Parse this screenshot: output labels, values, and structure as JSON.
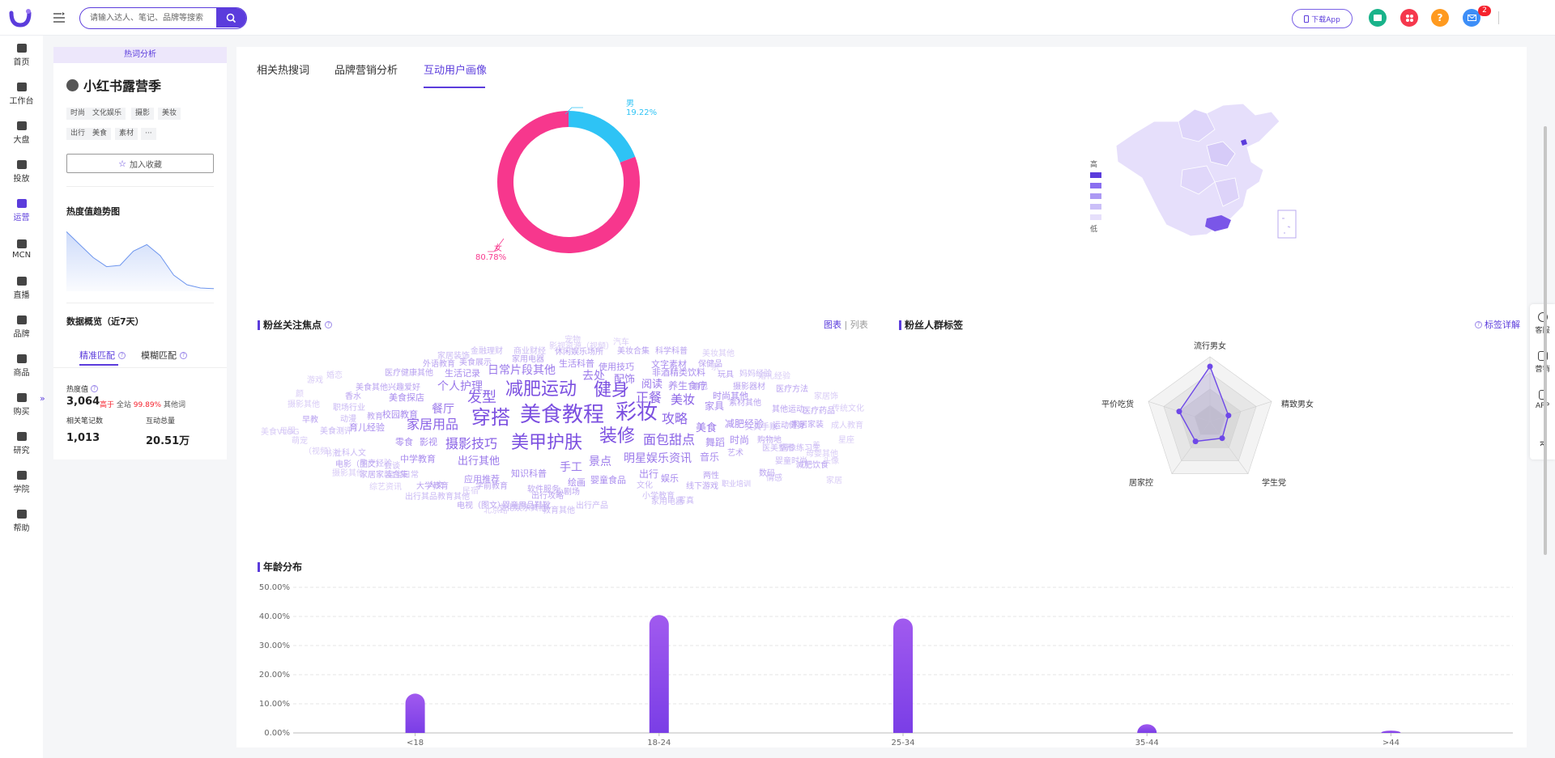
{
  "header": {
    "search_placeholder": "请输入达人、笔记、品牌等搜索",
    "download_label": "下载App",
    "notification_count": "2"
  },
  "sidebar": {
    "items": [
      {
        "label": "首页",
        "icon": "home-icon"
      },
      {
        "label": "工作台",
        "icon": "workbench-icon"
      },
      {
        "label": "大盘",
        "icon": "pie-chart-icon"
      },
      {
        "label": "投放",
        "icon": "folder-icon"
      },
      {
        "label": "运营",
        "icon": "trend-icon",
        "active": true
      },
      {
        "label": "MCN",
        "icon": "mcn-icon"
      },
      {
        "label": "直播",
        "icon": "video-icon"
      },
      {
        "label": "品牌",
        "icon": "brand-icon"
      },
      {
        "label": "商品",
        "icon": "bag-icon"
      },
      {
        "label": "购买",
        "icon": "cart-icon"
      },
      {
        "label": "研究",
        "icon": "flask-icon"
      },
      {
        "label": "学院",
        "icon": "academy-icon"
      },
      {
        "label": "帮助",
        "icon": "help-icon"
      }
    ]
  },
  "left_panel": {
    "header": "热词分析",
    "topic_title": "小红书露营季",
    "tags": [
      "时尚",
      "文化娱乐",
      "摄影",
      "美妆",
      "出行",
      "美食",
      "素材",
      "···"
    ],
    "favorite_label": "加入收藏",
    "trend_title": "热度值趋势图",
    "trend_points": [
      0.92,
      0.72,
      0.52,
      0.38,
      0.4,
      0.62,
      0.72,
      0.55,
      0.25,
      0.1,
      0.05,
      0.04
    ],
    "overview_title": "数据概览（近7天）",
    "tabs": [
      "精准匹配",
      "模糊匹配"
    ],
    "stats": {
      "heat_label": "热度值",
      "heat_value": "3,064",
      "heat_extra_prefix": "高于",
      "heat_extra_mid": "全站",
      "heat_extra_pct": "99.89%",
      "heat_extra_suffix": "其他词",
      "notes_label": "相关笔记数",
      "notes_value": "1,013",
      "interact_label": "互动总量",
      "interact_value": "20.51万"
    }
  },
  "main": {
    "tabs": [
      "相关热搜词",
      "品牌营销分析",
      "互动用户画像"
    ],
    "gender": {
      "male_label": "男",
      "male_pct": "19.22%",
      "male_value": 19.22,
      "female_label": "女",
      "female_pct": "80.78%",
      "female_value": 80.78,
      "male_color": "#2ec3f5",
      "female_color": "#f7378d"
    },
    "map_legend": {
      "high": "高",
      "low": "低"
    },
    "focus_title": "粉丝关注焦点",
    "view_chart": "图表",
    "view_list": "列表",
    "crowd_title": "粉丝人群标签",
    "tag_detail": "标签详解",
    "radar": {
      "labels": [
        "流行男女",
        "精致男女",
        "学生党",
        "居家控",
        "平价吃货"
      ],
      "values": [
        0.85,
        0.3,
        0.32,
        0.38,
        0.5
      ]
    },
    "age_title": "年龄分布",
    "word_cloud": [
      {
        "t": "美食教程",
        "s": 26,
        "c": "#7b4fe0"
      },
      {
        "t": "减肥运动",
        "s": 22,
        "c": "#7b4fe0"
      },
      {
        "t": "彩妆",
        "s": 26,
        "c": "#7b4fe0"
      },
      {
        "t": "穿搭",
        "s": 24,
        "c": "#7b4fe0"
      },
      {
        "t": "美甲护肤",
        "s": 22,
        "c": "#7b4fe0"
      },
      {
        "t": "装修",
        "s": 22,
        "c": "#7b4fe0"
      },
      {
        "t": "健身",
        "s": 22,
        "c": "#7b4fe0"
      },
      {
        "t": "发型",
        "s": 18,
        "c": "#8a62e6"
      },
      {
        "t": "正餐",
        "s": 16,
        "c": "#8a62e6"
      },
      {
        "t": "美妆",
        "s": 15,
        "c": "#8a62e6"
      },
      {
        "t": "家居用品",
        "s": 16,
        "c": "#8a62e6"
      },
      {
        "t": "摄影技巧",
        "s": 16,
        "c": "#8a62e6"
      },
      {
        "t": "面包甜点",
        "s": 16,
        "c": "#8a62e6"
      },
      {
        "t": "攻略",
        "s": 16,
        "c": "#8a62e6"
      },
      {
        "t": "明星娱乐资讯",
        "s": 14,
        "c": "#9a78ea"
      },
      {
        "t": "日常片段其他",
        "s": 14,
        "c": "#9a78ea"
      },
      {
        "t": "个人护理",
        "s": 14,
        "c": "#9a78ea"
      },
      {
        "t": "餐厅",
        "s": 14,
        "c": "#9a78ea"
      },
      {
        "t": "去处",
        "s": 14,
        "c": "#9a78ea"
      },
      {
        "t": "配饰",
        "s": 13,
        "c": "#9a78ea"
      },
      {
        "t": "阅读",
        "s": 13,
        "c": "#9a78ea"
      },
      {
        "t": "养生食疗",
        "s": 12,
        "c": "#a88bee"
      },
      {
        "t": "景点",
        "s": 14,
        "c": "#9a78ea"
      },
      {
        "t": "手工",
        "s": 14,
        "c": "#9a78ea"
      },
      {
        "t": "出行其他",
        "s": 13,
        "c": "#9a78ea"
      },
      {
        "t": "美食",
        "s": 13,
        "c": "#9a78ea"
      },
      {
        "t": "家具",
        "s": 12,
        "c": "#a88bee"
      },
      {
        "t": "减肥经验",
        "s": 12,
        "c": "#a88bee"
      },
      {
        "t": "舞蹈",
        "s": 12,
        "c": "#a88bee"
      },
      {
        "t": "时尚",
        "s": 12,
        "c": "#a88bee"
      },
      {
        "t": "音乐",
        "s": 12,
        "c": "#a88bee"
      },
      {
        "t": "出行",
        "s": 12,
        "c": "#a88bee"
      },
      {
        "t": "娱乐",
        "s": 11,
        "c": "#a88bee"
      },
      {
        "t": "婴童食品",
        "s": 11,
        "c": "#a88bee"
      },
      {
        "t": "绘画",
        "s": 11,
        "c": "#a88bee"
      },
      {
        "t": "应用推荐",
        "s": 11,
        "c": "#a88bee"
      },
      {
        "t": "知识科普",
        "s": 11,
        "c": "#a88bee"
      },
      {
        "t": "中学教育",
        "s": 11,
        "c": "#a88bee"
      },
      {
        "t": "影视",
        "s": 11,
        "c": "#a88bee"
      },
      {
        "t": "零食",
        "s": 11,
        "c": "#a88bee"
      },
      {
        "t": "育儿经验",
        "s": 11,
        "c": "#a88bee"
      },
      {
        "t": "校园教育",
        "s": 11,
        "c": "#a88bee"
      },
      {
        "t": "美食探店",
        "s": 11,
        "c": "#a88bee"
      },
      {
        "t": "生活记录",
        "s": 11,
        "c": "#a88bee"
      },
      {
        "t": "使用技巧",
        "s": 11,
        "c": "#a88bee"
      },
      {
        "t": "非酒精类饮料",
        "s": 11,
        "c": "#a88bee"
      },
      {
        "t": "文字素材",
        "s": 11,
        "c": "#a88bee"
      },
      {
        "t": "时尚其他",
        "s": 11,
        "c": "#a88bee"
      },
      {
        "t": "生活科普",
        "s": 11,
        "c": "#a88bee"
      },
      {
        "t": "医疗健康其他",
        "s": 10,
        "c": "#b9a2f0"
      },
      {
        "t": "美食其他兴趣爱好",
        "s": 10,
        "c": "#b9a2f0"
      },
      {
        "t": "美食展示",
        "s": 10,
        "c": "#b9a2f0"
      },
      {
        "t": "外语教育",
        "s": 10,
        "c": "#b9a2f0"
      },
      {
        "t": "家用电器",
        "s": 10,
        "c": "#b9a2f0"
      },
      {
        "t": "休闲娱乐场所",
        "s": 10,
        "c": "#b9a2f0"
      },
      {
        "t": "美妆合集",
        "s": 10,
        "c": "#b9a2f0"
      },
      {
        "t": "科学科普",
        "s": 10,
        "c": "#b9a2f0"
      },
      {
        "t": "保健品",
        "s": 10,
        "c": "#b9a2f0"
      },
      {
        "t": "玩具",
        "s": 10,
        "c": "#b9a2f0"
      },
      {
        "t": "箱包",
        "s": 10,
        "c": "#b9a2f0"
      },
      {
        "t": "摄影器材",
        "s": 10,
        "c": "#b9a2f0"
      },
      {
        "t": "医疗方法",
        "s": 10,
        "c": "#b9a2f0"
      },
      {
        "t": "素材其他",
        "s": 10,
        "c": "#b9a2f0"
      },
      {
        "t": "其他运动",
        "s": 10,
        "c": "#b9a2f0"
      },
      {
        "t": "医疗药品",
        "s": 10,
        "c": "#b9a2f0"
      },
      {
        "t": "购物地",
        "s": 10,
        "c": "#b9a2f0"
      },
      {
        "t": "艺术",
        "s": 10,
        "c": "#b9a2f0"
      },
      {
        "t": "文具手账",
        "s": 10,
        "c": "#c9b8f4"
      },
      {
        "t": "运动健身",
        "s": 10,
        "c": "#b9a2f0"
      },
      {
        "t": "家居家装",
        "s": 10,
        "c": "#b9a2f0"
      },
      {
        "t": "减肥饮食",
        "s": 10,
        "c": "#b9a2f0"
      },
      {
        "t": "数码",
        "s": 10,
        "c": "#b9a2f0"
      },
      {
        "t": "两性",
        "s": 10,
        "c": "#b9a2f0"
      },
      {
        "t": "宝宝日常",
        "s": 10,
        "c": "#c9b8f4"
      },
      {
        "t": "人文",
        "s": 10,
        "c": "#b9a2f0"
      },
      {
        "t": "大学教育",
        "s": 10,
        "c": "#b9a2f0"
      },
      {
        "t": "学前教育",
        "s": 10,
        "c": "#b9a2f0"
      },
      {
        "t": "软件服务",
        "s": 10,
        "c": "#b9a2f0"
      },
      {
        "t": "出行攻略",
        "s": 10,
        "c": "#b9a2f0"
      },
      {
        "t": "小剧场",
        "s": 10,
        "c": "#b9a2f0"
      },
      {
        "t": "文化",
        "s": 10,
        "c": "#c9b8f4"
      },
      {
        "t": "线下游戏",
        "s": 10,
        "c": "#b9a2f0"
      },
      {
        "t": "职业培训",
        "s": 9,
        "c": "#c9b8f4"
      },
      {
        "t": "出行产品",
        "s": 10,
        "c": "#c9b8f4"
      },
      {
        "t": "教育其他",
        "s": 10,
        "c": "#c9b8f4"
      },
      {
        "t": "电视（图文）",
        "s": 10,
        "c": "#b9a2f0"
      },
      {
        "t": "婴童用品鞋靴",
        "s": 10,
        "c": "#b9a2f0"
      },
      {
        "t": "家居家装合集",
        "s": 10,
        "c": "#b9a2f0"
      },
      {
        "t": "社科人文",
        "s": 10,
        "c": "#c9b8f4"
      },
      {
        "t": "电影（图文）",
        "s": 10,
        "c": "#b9a2f0"
      },
      {
        "t": "美食测评",
        "s": 10,
        "c": "#c9b8f4"
      },
      {
        "t": "职场行业",
        "s": 10,
        "c": "#c9b8f4"
      },
      {
        "t": "香水",
        "s": 10,
        "c": "#b9a2f0"
      },
      {
        "t": "早教",
        "s": 10,
        "c": "#b9a2f0"
      },
      {
        "t": "动漫",
        "s": 10,
        "c": "#c9b8f4"
      },
      {
        "t": "教育",
        "s": 10,
        "c": "#b9a2f0"
      },
      {
        "t": "孕产经验",
        "s": 10,
        "c": "#c9b8f4"
      },
      {
        "t": "会谈",
        "s": 10,
        "c": "#c9b8f4"
      },
      {
        "t": "医美整形",
        "s": 10,
        "c": "#c9b8f4"
      },
      {
        "t": "偶像练习生",
        "s": 10,
        "c": "#c9b8f4"
      },
      {
        "t": "婴童时尚",
        "s": 10,
        "c": "#c9b8f4"
      },
      {
        "t": "情感",
        "s": 10,
        "c": "#c9b8f4"
      },
      {
        "t": "写真",
        "s": 10,
        "c": "#c9b8f4"
      },
      {
        "t": "小学教育",
        "s": 10,
        "c": "#c9b8f4"
      },
      {
        "t": "家用电器",
        "s": 10,
        "c": "#c9b8f4"
      },
      {
        "t": "妈妈经验",
        "s": 10,
        "c": "#c9b8f4"
      },
      {
        "t": "家居装饰",
        "s": 10,
        "c": "#c9b8f4"
      },
      {
        "t": "金融理财",
        "s": 10,
        "c": "#c9b8f4"
      },
      {
        "t": "商业财经",
        "s": 10,
        "c": "#c9b8f4"
      },
      {
        "t": "影视资源（视频）",
        "s": 10,
        "c": "#d8cbf6"
      },
      {
        "t": "宠物",
        "s": 10,
        "c": "#d8cbf6"
      },
      {
        "t": "汽车",
        "s": 10,
        "c": "#d8cbf6"
      },
      {
        "t": "美妆其他",
        "s": 10,
        "c": "#d8cbf6"
      },
      {
        "t": "婚恋",
        "s": 10,
        "c": "#d8cbf6"
      },
      {
        "t": "游戏",
        "s": 10,
        "c": "#d8cbf6"
      },
      {
        "t": "婚礼经验",
        "s": 10,
        "c": "#d8cbf6"
      },
      {
        "t": "家居饰",
        "s": 10,
        "c": "#d8cbf6"
      },
      {
        "t": "传统文化",
        "s": 10,
        "c": "#d8cbf6"
      },
      {
        "t": "成人教育",
        "s": 10,
        "c": "#d8cbf6"
      },
      {
        "t": "星座",
        "s": 10,
        "c": "#d8cbf6"
      },
      {
        "t": "母婴其他",
        "s": 10,
        "c": "#d8cbf6"
      },
      {
        "t": "摄影其他",
        "s": 10,
        "c": "#d8cbf6"
      },
      {
        "t": "综艺资讯",
        "s": 10,
        "c": "#d8cbf6"
      },
      {
        "t": "出行其品教育其他",
        "s": 10,
        "c": "#c9b8f4"
      },
      {
        "t": "民宿",
        "s": 10,
        "c": "#d8cbf6"
      },
      {
        "t": "文化娱乐其他",
        "s": 10,
        "c": "#c9b8f4"
      },
      {
        "t": "北京路",
        "s": 10,
        "c": "#d8cbf6"
      },
      {
        "t": "母婴",
        "s": 10,
        "c": "#d8cbf6"
      },
      {
        "t": "萌宠",
        "s": 10,
        "c": "#d8cbf6"
      },
      {
        "t": "（视频）",
        "s": 10,
        "c": "#d8cbf6"
      },
      {
        "t": "美食VLOG",
        "s": 10,
        "c": "#d8cbf6"
      },
      {
        "t": "摄影其他",
        "s": 10,
        "c": "#d8cbf6"
      },
      {
        "t": "颜",
        "s": 10,
        "c": "#d8cbf6"
      },
      {
        "t": "书法",
        "s": 10,
        "c": "#d8cbf6"
      },
      {
        "t": "养",
        "s": 10,
        "c": "#d8cbf6"
      },
      {
        "t": "头像",
        "s": 10,
        "c": "#d8cbf6"
      },
      {
        "t": "宗",
        "s": 10,
        "c": "#d8cbf6"
      },
      {
        "t": "家居",
        "s": 10,
        "c": "#d8cbf6"
      }
    ]
  },
  "chart_data": {
    "type": "bar",
    "title": "年龄分布",
    "categories": [
      "<18",
      "18-24",
      "25-34",
      "35-44",
      ">44"
    ],
    "values": [
      13.5,
      40.5,
      39.3,
      3.0,
      0.8
    ],
    "ylim": [
      0,
      50
    ],
    "yticks": [
      "0.00%",
      "10.00%",
      "20.00%",
      "30.00%",
      "40.00%",
      "50.00%"
    ],
    "colors": {
      "top": "#a15aef",
      "bottom": "#7a3ee6"
    }
  },
  "float_bar": [
    "客服",
    "营销",
    "APP"
  ]
}
